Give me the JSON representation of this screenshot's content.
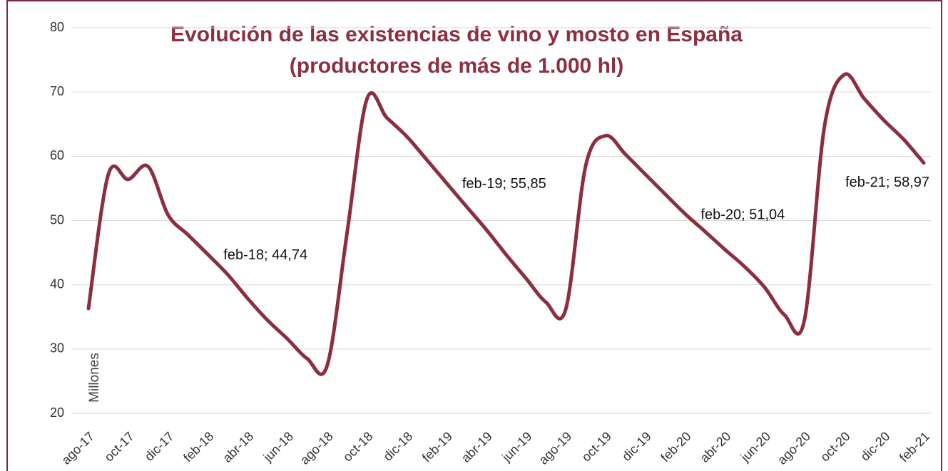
{
  "chart_data": {
    "type": "line",
    "title": "Evolución de las existencias de vino y mosto en España",
    "subtitle": "(productores de más de 1.000 hl)",
    "y_label": "Millones",
    "categories": [
      "ago-17",
      null,
      "oct-17",
      null,
      "dic-17",
      null,
      "feb-18",
      null,
      "abr-18",
      null,
      "jun-18",
      null,
      "ago-18",
      null,
      "oct-18",
      null,
      "dic-18",
      null,
      "feb-19",
      null,
      "abr-19",
      null,
      "jun-19",
      null,
      "ago-19",
      null,
      "oct-19",
      null,
      "dic-19",
      null,
      "feb-20",
      null,
      "abr-20",
      null,
      "jun-20",
      null,
      "ago-20",
      null,
      "oct-20",
      null,
      "dic-20",
      null,
      "feb-21"
    ],
    "series": [
      {
        "name": "Existencias",
        "color": "#8b2f40",
        "values": [
          36.3,
          57.2,
          56.4,
          58.4,
          50.9,
          47.8,
          44.74,
          41.6,
          37.9,
          34.5,
          31.6,
          28.5,
          27.4,
          48,
          68.9,
          66,
          63.1,
          59.5,
          55.85,
          52.2,
          48.6,
          44.7,
          41,
          37.3,
          36.2,
          58.5,
          63.2,
          60.3,
          57.2,
          54.1,
          51.04,
          48.3,
          45.5,
          42.8,
          39.6,
          35.3,
          34.5,
          64.5,
          72.7,
          69,
          65.6,
          62.6,
          58.97
        ],
        "value_labels": [
          null,
          null,
          null,
          null,
          null,
          null,
          "feb-18; 44,74",
          null,
          null,
          null,
          null,
          null,
          null,
          null,
          null,
          null,
          null,
          null,
          "feb-19; 55,85",
          null,
          null,
          null,
          null,
          null,
          null,
          null,
          null,
          null,
          null,
          null,
          "feb-20; 51,04",
          null,
          null,
          null,
          null,
          null,
          null,
          null,
          null,
          null,
          null,
          null,
          "feb-21; 58,97"
        ]
      }
    ],
    "ylim": [
      20,
      80
    ],
    "yticks": [
      20,
      30,
      40,
      50,
      60,
      70,
      80
    ],
    "grid": true
  }
}
